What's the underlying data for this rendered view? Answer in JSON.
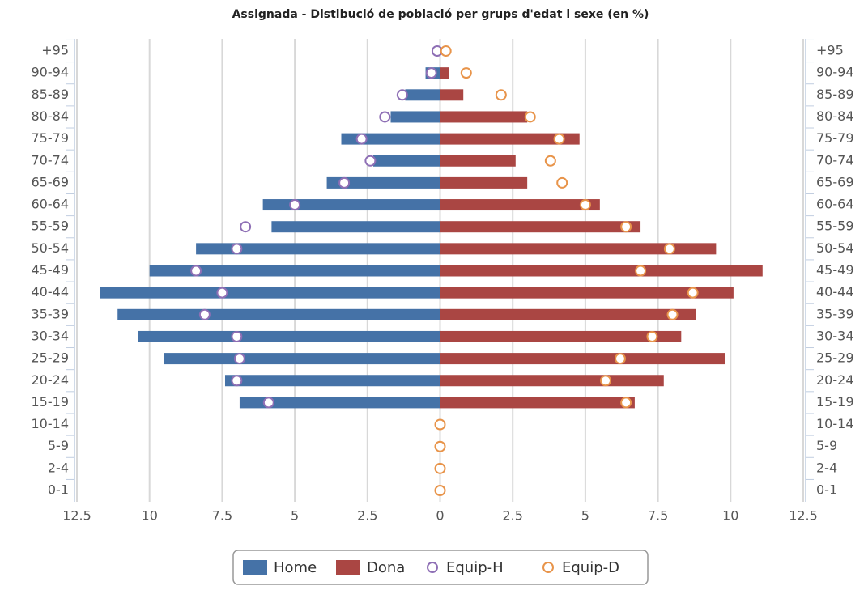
{
  "chart_data": {
    "type": "bar",
    "title": "Assignada - Distibució de població per grups d'edat i sexe (en %)",
    "categories": [
      "+95",
      "90-94",
      "85-89",
      "80-84",
      "75-79",
      "70-74",
      "65-69",
      "60-64",
      "55-59",
      "50-54",
      "45-49",
      "40-44",
      "35-39",
      "30-34",
      "25-29",
      "20-24",
      "15-19",
      "10-14",
      "5-9",
      "2-4",
      "0-1"
    ],
    "series": [
      {
        "name": "Home",
        "type": "bar",
        "color": "#4572a7",
        "values": [
          0,
          -0.5,
          -1.2,
          -1.7,
          -3.4,
          -2.3,
          -3.9,
          -6.1,
          -5.8,
          -8.4,
          -10.0,
          -11.7,
          -11.1,
          -10.4,
          -9.5,
          -7.4,
          -6.9,
          0,
          0,
          0,
          0
        ]
      },
      {
        "name": "Dona",
        "type": "bar",
        "color": "#aa4643",
        "values": [
          0,
          0.3,
          0.8,
          3.0,
          4.8,
          2.6,
          3.0,
          5.5,
          6.9,
          9.5,
          11.1,
          10.1,
          8.8,
          8.3,
          9.8,
          7.7,
          6.7,
          0,
          0,
          0,
          0
        ]
      },
      {
        "name": "Equip-H",
        "type": "scatter",
        "color": "#8e6fb5",
        "values": [
          -0.1,
          -0.3,
          -1.3,
          -1.9,
          -2.7,
          -2.4,
          -3.3,
          -5.0,
          -6.7,
          -7.0,
          -8.4,
          -7.5,
          -8.1,
          -7.0,
          -6.9,
          -7.0,
          -5.9,
          null,
          null,
          null,
          null
        ]
      },
      {
        "name": "Equip-D",
        "type": "scatter",
        "color": "#e8944a",
        "values": [
          0.2,
          0.9,
          2.1,
          3.1,
          4.1,
          3.8,
          4.2,
          5.0,
          6.4,
          7.9,
          6.9,
          8.7,
          8.0,
          7.3,
          6.2,
          5.7,
          6.4,
          0,
          0,
          0,
          0
        ]
      }
    ],
    "xlim": [
      -12.5,
      12.5
    ],
    "xticks": [
      {
        "value": -12.5,
        "label": "12.5"
      },
      {
        "value": -10,
        "label": "10"
      },
      {
        "value": -7.5,
        "label": "7.5"
      },
      {
        "value": -5,
        "label": "5"
      },
      {
        "value": -2.5,
        "label": "2.5"
      },
      0,
      2.5,
      5,
      7.5,
      10,
      12.5
    ],
    "grid": true
  }
}
